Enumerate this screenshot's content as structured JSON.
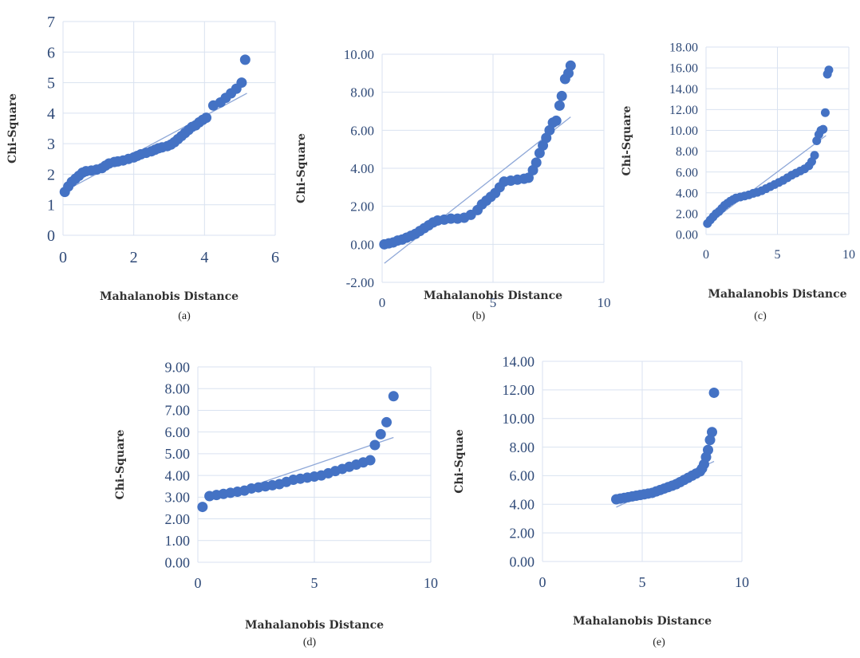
{
  "figure": {
    "colors": {
      "points": "#4472c4",
      "trendline": "#8fa8d8",
      "grid": "#d9e2f0",
      "ticks": "#2f4a78"
    }
  },
  "chart_data": [
    {
      "id": "a",
      "type": "scatter",
      "caption": "(a)",
      "xlabel": "Mahalanobis Distance",
      "ylabel": "Chi-Square",
      "xlim": [
        0,
        6
      ],
      "ylim": [
        0,
        7
      ],
      "xticks": [
        "0",
        "2",
        "4",
        "6"
      ],
      "yticks": [
        "0",
        "1",
        "2",
        "3",
        "4",
        "5",
        "6",
        "7"
      ],
      "grid": true,
      "trendline": [
        [
          0.05,
          1.45
        ],
        [
          5.2,
          4.65
        ]
      ],
      "points": [
        [
          0.05,
          1.42
        ],
        [
          0.15,
          1.6
        ],
        [
          0.25,
          1.75
        ],
        [
          0.35,
          1.85
        ],
        [
          0.45,
          1.95
        ],
        [
          0.55,
          2.05
        ],
        [
          0.65,
          2.1
        ],
        [
          0.8,
          2.12
        ],
        [
          0.95,
          2.15
        ],
        [
          1.1,
          2.2
        ],
        [
          1.2,
          2.28
        ],
        [
          1.3,
          2.35
        ],
        [
          1.45,
          2.4
        ],
        [
          1.55,
          2.42
        ],
        [
          1.7,
          2.45
        ],
        [
          1.85,
          2.5
        ],
        [
          2.0,
          2.55
        ],
        [
          2.1,
          2.6
        ],
        [
          2.2,
          2.65
        ],
        [
          2.35,
          2.7
        ],
        [
          2.5,
          2.75
        ],
        [
          2.6,
          2.8
        ],
        [
          2.7,
          2.85
        ],
        [
          2.8,
          2.88
        ],
        [
          2.95,
          2.92
        ],
        [
          3.05,
          2.97
        ],
        [
          3.15,
          3.05
        ],
        [
          3.25,
          3.15
        ],
        [
          3.35,
          3.25
        ],
        [
          3.45,
          3.35
        ],
        [
          3.55,
          3.45
        ],
        [
          3.65,
          3.55
        ],
        [
          3.75,
          3.6
        ],
        [
          3.85,
          3.7
        ],
        [
          3.95,
          3.78
        ],
        [
          4.05,
          3.85
        ],
        [
          4.25,
          4.25
        ],
        [
          4.45,
          4.35
        ],
        [
          4.6,
          4.5
        ],
        [
          4.75,
          4.65
        ],
        [
          4.9,
          4.8
        ],
        [
          5.05,
          5.0
        ],
        [
          5.15,
          5.75
        ]
      ]
    },
    {
      "id": "b",
      "type": "scatter",
      "caption": "(b)",
      "xlabel": "Mahalanobis Distance",
      "ylabel": "Chi-Square",
      "xlim": [
        0,
        10
      ],
      "ylim": [
        -2,
        10
      ],
      "xticks": [
        "0",
        "5",
        "10"
      ],
      "yticks": [
        "-2.00",
        "0.00",
        "2.00",
        "4.00",
        "6.00",
        "8.00",
        "10.00"
      ],
      "grid": true,
      "trendline": [
        [
          0.1,
          -1.0
        ],
        [
          8.5,
          6.7
        ]
      ],
      "points": [
        [
          0.1,
          0.0
        ],
        [
          0.3,
          0.05
        ],
        [
          0.5,
          0.1
        ],
        [
          0.7,
          0.2
        ],
        [
          0.9,
          0.25
        ],
        [
          1.1,
          0.35
        ],
        [
          1.3,
          0.45
        ],
        [
          1.5,
          0.55
        ],
        [
          1.7,
          0.7
        ],
        [
          1.9,
          0.85
        ],
        [
          2.1,
          1.0
        ],
        [
          2.3,
          1.15
        ],
        [
          2.5,
          1.25
        ],
        [
          2.8,
          1.3
        ],
        [
          3.1,
          1.35
        ],
        [
          3.4,
          1.35
        ],
        [
          3.7,
          1.4
        ],
        [
          4.0,
          1.55
        ],
        [
          4.3,
          1.8
        ],
        [
          4.5,
          2.1
        ],
        [
          4.7,
          2.3
        ],
        [
          4.9,
          2.5
        ],
        [
          5.1,
          2.7
        ],
        [
          5.3,
          3.0
        ],
        [
          5.5,
          3.3
        ],
        [
          5.8,
          3.35
        ],
        [
          6.1,
          3.4
        ],
        [
          6.4,
          3.45
        ],
        [
          6.6,
          3.5
        ],
        [
          6.8,
          3.9
        ],
        [
          6.95,
          4.3
        ],
        [
          7.1,
          4.8
        ],
        [
          7.25,
          5.2
        ],
        [
          7.4,
          5.6
        ],
        [
          7.55,
          6.0
        ],
        [
          7.7,
          6.4
        ],
        [
          7.85,
          6.5
        ],
        [
          8.0,
          7.3
        ],
        [
          8.1,
          7.8
        ],
        [
          8.25,
          8.7
        ],
        [
          8.4,
          9.0
        ],
        [
          8.5,
          9.4
        ]
      ]
    },
    {
      "id": "c",
      "type": "scatter",
      "caption": "(c)",
      "xlabel": "Mahalanobis Distance",
      "ylabel": "Chi-Square",
      "xlim": [
        0,
        10
      ],
      "ylim": [
        0,
        18
      ],
      "xticks": [
        "0",
        "5",
        "10"
      ],
      "yticks": [
        "0.00",
        "2.00",
        "4.00",
        "6.00",
        "8.00",
        "10.00",
        "12.00",
        "14.00",
        "16.00",
        "18.00"
      ],
      "grid": true,
      "trendline": [
        [
          0.1,
          1.0
        ],
        [
          8.4,
          9.5
        ]
      ],
      "points": [
        [
          0.1,
          1.05
        ],
        [
          0.3,
          1.4
        ],
        [
          0.5,
          1.7
        ],
        [
          0.7,
          2.0
        ],
        [
          0.9,
          2.2
        ],
        [
          1.1,
          2.5
        ],
        [
          1.3,
          2.8
        ],
        [
          1.5,
          3.0
        ],
        [
          1.7,
          3.2
        ],
        [
          1.9,
          3.35
        ],
        [
          2.1,
          3.5
        ],
        [
          2.4,
          3.6
        ],
        [
          2.7,
          3.7
        ],
        [
          3.0,
          3.8
        ],
        [
          3.3,
          3.95
        ],
        [
          3.6,
          4.05
        ],
        [
          3.9,
          4.2
        ],
        [
          4.2,
          4.4
        ],
        [
          4.5,
          4.6
        ],
        [
          4.8,
          4.8
        ],
        [
          5.1,
          5.0
        ],
        [
          5.4,
          5.2
        ],
        [
          5.7,
          5.45
        ],
        [
          6.0,
          5.7
        ],
        [
          6.3,
          5.9
        ],
        [
          6.6,
          6.1
        ],
        [
          6.9,
          6.3
        ],
        [
          7.2,
          6.6
        ],
        [
          7.4,
          7.0
        ],
        [
          7.6,
          7.6
        ],
        [
          7.75,
          9.0
        ],
        [
          7.9,
          9.6
        ],
        [
          8.05,
          10.0
        ],
        [
          8.2,
          10.1
        ],
        [
          8.35,
          11.7
        ],
        [
          8.5,
          15.4
        ],
        [
          8.6,
          15.8
        ]
      ]
    },
    {
      "id": "d",
      "type": "scatter",
      "caption": "(d)",
      "xlabel": "Mahalanobis Distance",
      "ylabel": "Chi-Square",
      "xlim": [
        0,
        10
      ],
      "ylim": [
        0,
        9
      ],
      "xticks": [
        "0",
        "5",
        "10"
      ],
      "yticks": [
        "0.00",
        "1.00",
        "2.00",
        "3.00",
        "4.00",
        "5.00",
        "6.00",
        "7.00",
        "8.00",
        "9.00"
      ],
      "grid": true,
      "trendline": [
        [
          0.5,
          2.85
        ],
        [
          8.4,
          5.75
        ]
      ],
      "points": [
        [
          0.2,
          2.55
        ],
        [
          0.5,
          3.05
        ],
        [
          0.8,
          3.1
        ],
        [
          1.1,
          3.15
        ],
        [
          1.4,
          3.2
        ],
        [
          1.7,
          3.25
        ],
        [
          2.0,
          3.3
        ],
        [
          2.3,
          3.4
        ],
        [
          2.6,
          3.45
        ],
        [
          2.9,
          3.5
        ],
        [
          3.2,
          3.55
        ],
        [
          3.5,
          3.6
        ],
        [
          3.8,
          3.7
        ],
        [
          4.1,
          3.8
        ],
        [
          4.4,
          3.85
        ],
        [
          4.7,
          3.9
        ],
        [
          5.0,
          3.95
        ],
        [
          5.3,
          4.0
        ],
        [
          5.6,
          4.1
        ],
        [
          5.9,
          4.2
        ],
        [
          6.2,
          4.3
        ],
        [
          6.5,
          4.4
        ],
        [
          6.8,
          4.5
        ],
        [
          7.1,
          4.6
        ],
        [
          7.4,
          4.7
        ],
        [
          7.6,
          5.4
        ],
        [
          7.85,
          5.9
        ],
        [
          8.1,
          6.45
        ],
        [
          8.4,
          7.65
        ]
      ]
    },
    {
      "id": "e",
      "type": "scatter",
      "caption": "(e)",
      "xlabel": "Mahalanobis Distance",
      "ylabel": "Chi-Squae",
      "xlim": [
        0,
        10
      ],
      "ylim": [
        0,
        14
      ],
      "xticks": [
        "0",
        "5",
        "10"
      ],
      "yticks": [
        "0.00",
        "2.00",
        "4.00",
        "6.00",
        "8.00",
        "10.00",
        "12.00",
        "14.00"
      ],
      "grid": true,
      "trendline": [
        [
          3.7,
          3.8
        ],
        [
          8.6,
          7.0
        ]
      ],
      "points": [
        [
          3.7,
          4.35
        ],
        [
          3.9,
          4.4
        ],
        [
          4.1,
          4.45
        ],
        [
          4.3,
          4.5
        ],
        [
          4.5,
          4.55
        ],
        [
          4.7,
          4.6
        ],
        [
          4.9,
          4.65
        ],
        [
          5.1,
          4.7
        ],
        [
          5.3,
          4.75
        ],
        [
          5.5,
          4.8
        ],
        [
          5.7,
          4.9
        ],
        [
          5.9,
          5.0
        ],
        [
          6.1,
          5.1
        ],
        [
          6.3,
          5.2
        ],
        [
          6.5,
          5.3
        ],
        [
          6.7,
          5.4
        ],
        [
          6.9,
          5.55
        ],
        [
          7.1,
          5.7
        ],
        [
          7.3,
          5.85
        ],
        [
          7.5,
          6.0
        ],
        [
          7.7,
          6.15
        ],
        [
          7.9,
          6.3
        ],
        [
          8.0,
          6.5
        ],
        [
          8.1,
          6.8
        ],
        [
          8.2,
          7.3
        ],
        [
          8.3,
          7.8
        ],
        [
          8.4,
          8.5
        ],
        [
          8.5,
          9.05
        ],
        [
          8.6,
          11.8
        ]
      ]
    }
  ]
}
